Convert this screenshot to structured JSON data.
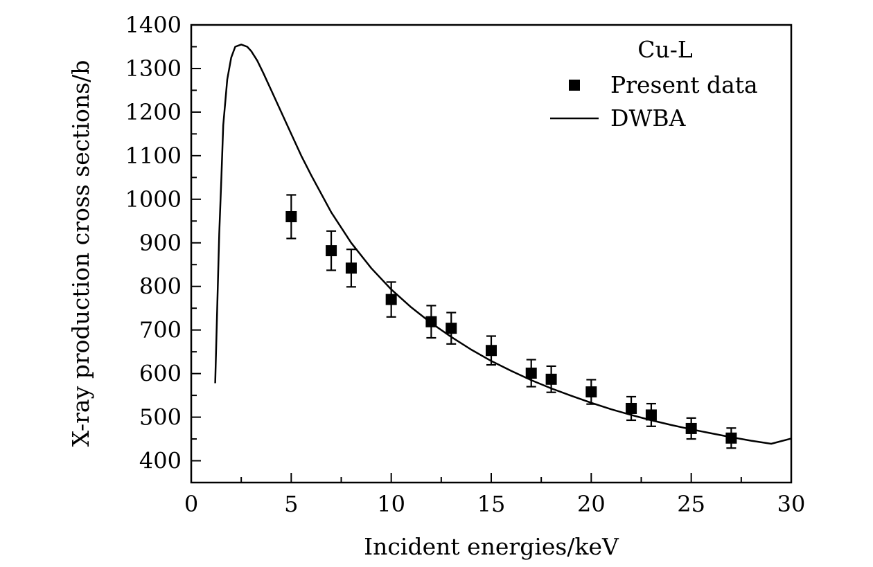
{
  "chart_data": {
    "type": "scatter",
    "title": "",
    "xlabel": "Incident energies/keV",
    "ylabel": "X-ray production cross sections/b",
    "xlim": [
      0,
      30
    ],
    "ylim": [
      350,
      1400
    ],
    "x_ticks": [
      0,
      5,
      10,
      15,
      20,
      25,
      30
    ],
    "x_tick_labels": [
      "0",
      "5",
      "10",
      "15",
      "20",
      "25",
      "30"
    ],
    "y_ticks": [
      400,
      500,
      600,
      700,
      800,
      900,
      1000,
      1100,
      1200,
      1300,
      1400
    ],
    "y_tick_labels": [
      "400",
      "500",
      "600",
      "700",
      "800",
      "900",
      "1000",
      "1100",
      "1200",
      "1300",
      "1400"
    ],
    "x_minor_step": 2.5,
    "y_minor_step": 50,
    "grid": false,
    "legend": {
      "title": "Cu-L",
      "placement": "top-right",
      "entries": [
        "Present data",
        "DWBA"
      ]
    },
    "series": [
      {
        "name": "Present data",
        "kind": "scatter",
        "marker": "square",
        "x": [
          5,
          7,
          8,
          10,
          12,
          13,
          15,
          17,
          18,
          20,
          22,
          23,
          25,
          27
        ],
        "y": [
          960,
          882,
          842,
          770,
          719,
          704,
          653,
          601,
          587,
          558,
          520,
          505,
          474,
          452
        ],
        "yerr": [
          50,
          45,
          43,
          40,
          37,
          36,
          33,
          31,
          30,
          28,
          27,
          26,
          24,
          23
        ]
      },
      {
        "name": "DWBA",
        "kind": "line",
        "x": [
          1.2,
          1.3,
          1.4,
          1.5,
          1.6,
          1.8,
          2.0,
          2.2,
          2.5,
          2.8,
          3.0,
          3.3,
          3.6,
          4.0,
          4.5,
          5.0,
          5.5,
          6.0,
          7.0,
          8.0,
          9.0,
          10.0,
          11.0,
          12.0,
          13.0,
          14.0,
          15.0,
          16.0,
          17.0,
          18.0,
          19.0,
          20.0,
          21.0,
          22.0,
          23.0,
          24.0,
          25.0,
          26.0,
          27.0,
          28.0,
          29.0,
          30.0
        ],
        "y": [
          578,
          750,
          920,
          1040,
          1170,
          1275,
          1325,
          1350,
          1355,
          1350,
          1340,
          1318,
          1290,
          1250,
          1200,
          1150,
          1100,
          1055,
          970,
          900,
          842,
          793,
          752,
          716,
          684,
          655,
          629,
          606,
          585,
          566,
          549,
          533,
          518,
          505,
          493,
          482,
          472,
          463,
          454,
          446,
          439,
          451
        ]
      }
    ]
  }
}
